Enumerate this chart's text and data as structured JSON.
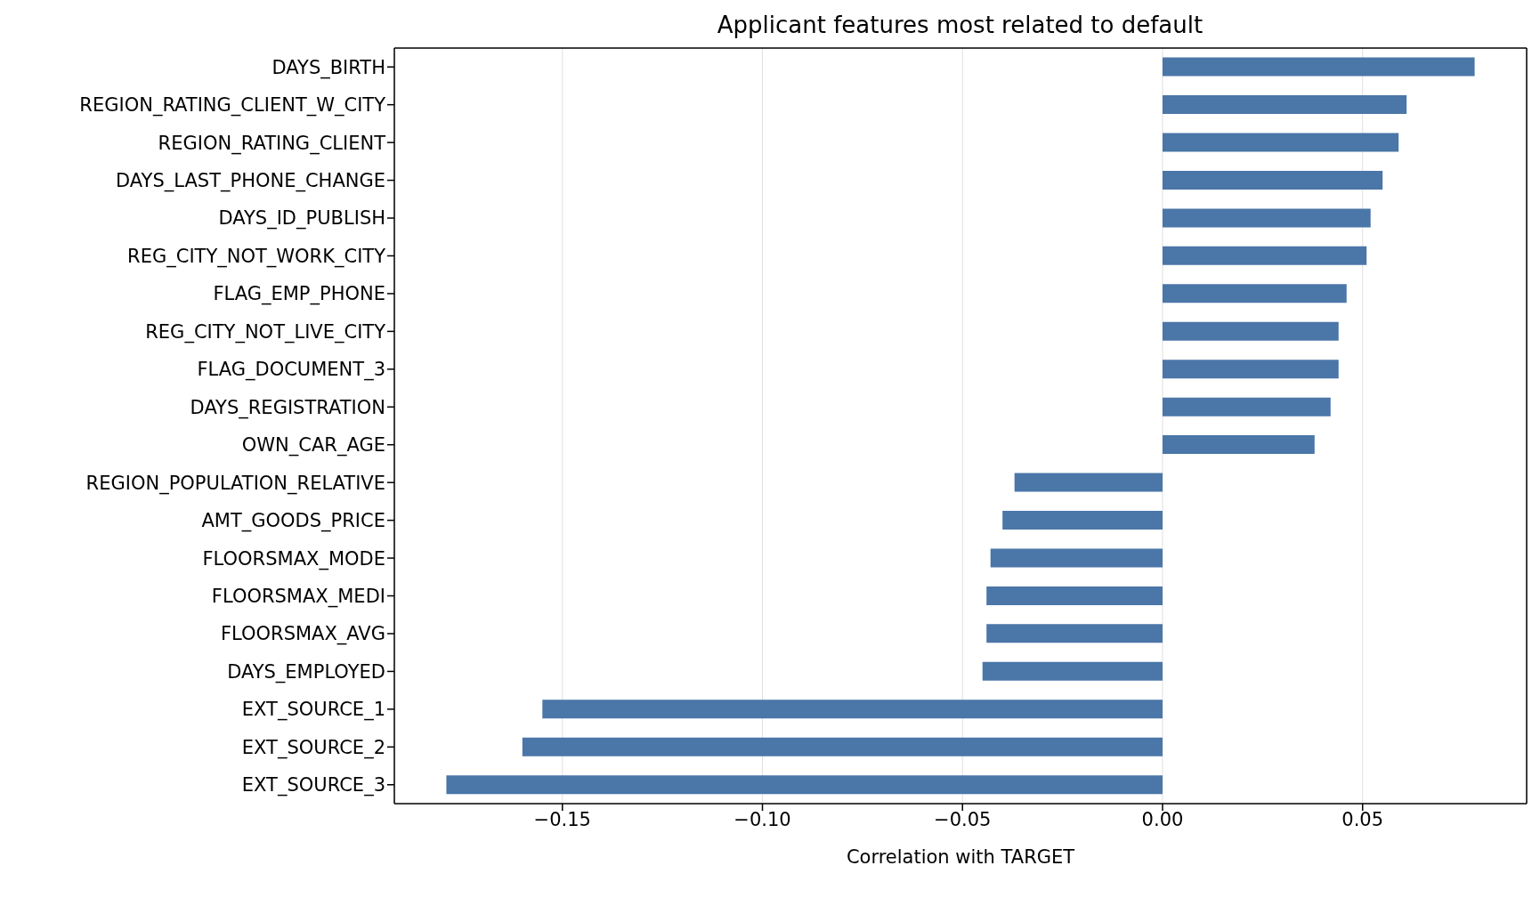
{
  "chart_data": {
    "type": "bar",
    "orientation": "horizontal",
    "title": "Applicant features most related to default",
    "xlabel": "Correlation with TARGET",
    "categories": [
      "DAYS_BIRTH",
      "REGION_RATING_CLIENT_W_CITY",
      "REGION_RATING_CLIENT",
      "DAYS_LAST_PHONE_CHANGE",
      "DAYS_ID_PUBLISH",
      "REG_CITY_NOT_WORK_CITY",
      "FLAG_EMP_PHONE",
      "REG_CITY_NOT_LIVE_CITY",
      "FLAG_DOCUMENT_3",
      "DAYS_REGISTRATION",
      "OWN_CAR_AGE",
      "REGION_POPULATION_RELATIVE",
      "AMT_GOODS_PRICE",
      "FLOORSMAX_MODE",
      "FLOORSMAX_MEDI",
      "FLOORSMAX_AVG",
      "DAYS_EMPLOYED",
      "EXT_SOURCE_1",
      "EXT_SOURCE_2",
      "EXT_SOURCE_3"
    ],
    "values": [
      0.078,
      0.061,
      0.059,
      0.055,
      0.052,
      0.051,
      0.046,
      0.044,
      0.044,
      0.042,
      0.038,
      -0.037,
      -0.04,
      -0.043,
      -0.044,
      -0.044,
      -0.045,
      -0.155,
      -0.16,
      -0.179
    ],
    "color": "#4a76a8",
    "xlim": [
      -0.192,
      0.091
    ],
    "xticks": [
      {
        "value": -0.15,
        "label": "−0.15"
      },
      {
        "value": -0.1,
        "label": "−0.10"
      },
      {
        "value": -0.05,
        "label": "−0.05"
      },
      {
        "value": 0,
        "label": "0.00"
      },
      {
        "value": 0.05,
        "label": "0.05"
      }
    ],
    "grid": "x",
    "legend": false
  }
}
